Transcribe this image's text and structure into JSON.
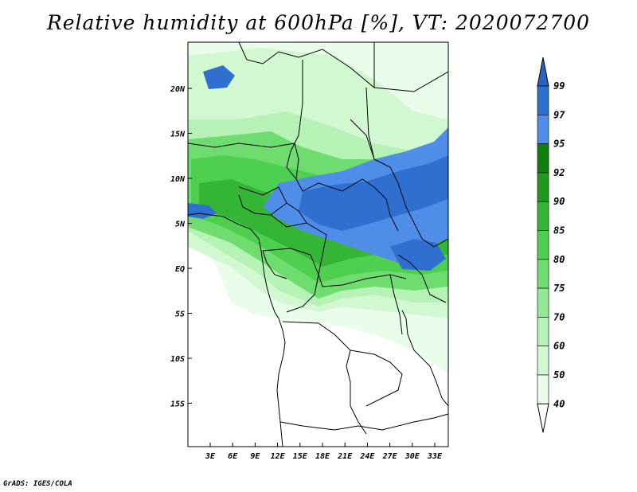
{
  "title": "Relative humidity at 600hPa [%], VT: 2020072700",
  "credit": "GrADS: IGES/COLA",
  "map": {
    "lon_labels": [
      "3E",
      "6E",
      "9E",
      "12E",
      "15E",
      "18E",
      "21E",
      "24E",
      "27E",
      "30E",
      "33E"
    ],
    "lat_labels": [
      "20N",
      "15N",
      "10N",
      "5N",
      "EQ",
      "5S",
      "10S",
      "15S"
    ]
  },
  "colorbar": {
    "levels": [
      "99",
      "97",
      "95",
      "92",
      "90",
      "85",
      "80",
      "75",
      "70",
      "60",
      "50",
      "40"
    ],
    "colors": [
      "#2f6fd0",
      "#4f8ee8",
      "#0f7f0f",
      "#1f9a1f",
      "#35b535",
      "#4fcf4f",
      "#6fdc6f",
      "#93e893",
      "#b6f2b6",
      "#d2f8d2",
      "#eafcea"
    ],
    "top_color": "#2a63c2"
  },
  "palette": {
    "light": "#eafcea",
    "l60": "#d2f8d2",
    "l70": "#b6f2b6",
    "l75": "#93e893",
    "l80": "#6fdc6f",
    "l85": "#4fcf4f",
    "l90": "#35b535",
    "blue95": "#4f8ee8",
    "blue97": "#2f6fd0"
  }
}
